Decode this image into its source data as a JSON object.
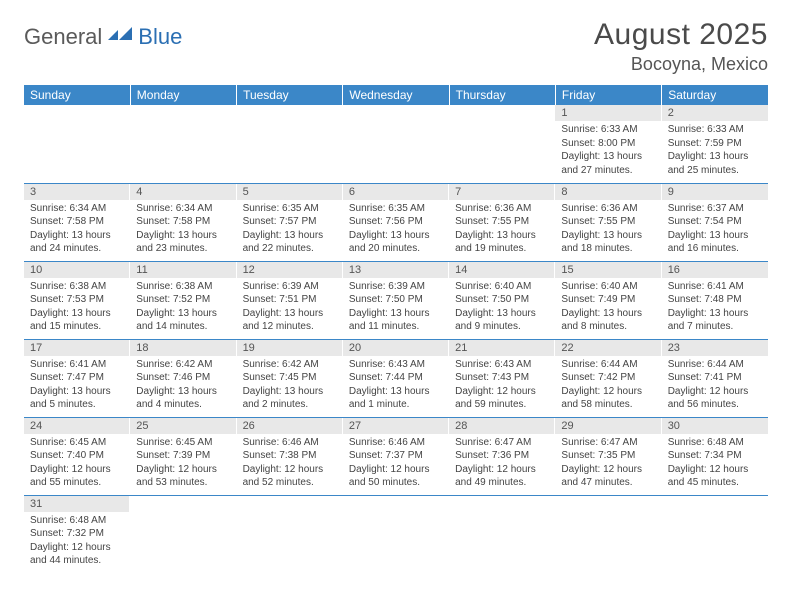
{
  "colors": {
    "header_bg": "#3b87c8",
    "header_text": "#ffffff",
    "daynum_bg": "#e8e8e8",
    "daynum_text": "#555555",
    "border": "#3b87c8",
    "body_text": "#444444",
    "logo_gray": "#5a5a5a",
    "logo_blue": "#2b6fb3"
  },
  "logo": {
    "part1": "General",
    "part2": "Blue"
  },
  "title": "August 2025",
  "location": "Bocoyna, Mexico",
  "weekdays": [
    "Sunday",
    "Monday",
    "Tuesday",
    "Wednesday",
    "Thursday",
    "Friday",
    "Saturday"
  ],
  "weeks": [
    [
      null,
      null,
      null,
      null,
      null,
      {
        "n": "1",
        "sunrise": "Sunrise: 6:33 AM",
        "sunset": "Sunset: 8:00 PM",
        "d1": "Daylight: 13 hours",
        "d2": "and 27 minutes."
      },
      {
        "n": "2",
        "sunrise": "Sunrise: 6:33 AM",
        "sunset": "Sunset: 7:59 PM",
        "d1": "Daylight: 13 hours",
        "d2": "and 25 minutes."
      }
    ],
    [
      {
        "n": "3",
        "sunrise": "Sunrise: 6:34 AM",
        "sunset": "Sunset: 7:58 PM",
        "d1": "Daylight: 13 hours",
        "d2": "and 24 minutes."
      },
      {
        "n": "4",
        "sunrise": "Sunrise: 6:34 AM",
        "sunset": "Sunset: 7:58 PM",
        "d1": "Daylight: 13 hours",
        "d2": "and 23 minutes."
      },
      {
        "n": "5",
        "sunrise": "Sunrise: 6:35 AM",
        "sunset": "Sunset: 7:57 PM",
        "d1": "Daylight: 13 hours",
        "d2": "and 22 minutes."
      },
      {
        "n": "6",
        "sunrise": "Sunrise: 6:35 AM",
        "sunset": "Sunset: 7:56 PM",
        "d1": "Daylight: 13 hours",
        "d2": "and 20 minutes."
      },
      {
        "n": "7",
        "sunrise": "Sunrise: 6:36 AM",
        "sunset": "Sunset: 7:55 PM",
        "d1": "Daylight: 13 hours",
        "d2": "and 19 minutes."
      },
      {
        "n": "8",
        "sunrise": "Sunrise: 6:36 AM",
        "sunset": "Sunset: 7:55 PM",
        "d1": "Daylight: 13 hours",
        "d2": "and 18 minutes."
      },
      {
        "n": "9",
        "sunrise": "Sunrise: 6:37 AM",
        "sunset": "Sunset: 7:54 PM",
        "d1": "Daylight: 13 hours",
        "d2": "and 16 minutes."
      }
    ],
    [
      {
        "n": "10",
        "sunrise": "Sunrise: 6:38 AM",
        "sunset": "Sunset: 7:53 PM",
        "d1": "Daylight: 13 hours",
        "d2": "and 15 minutes."
      },
      {
        "n": "11",
        "sunrise": "Sunrise: 6:38 AM",
        "sunset": "Sunset: 7:52 PM",
        "d1": "Daylight: 13 hours",
        "d2": "and 14 minutes."
      },
      {
        "n": "12",
        "sunrise": "Sunrise: 6:39 AM",
        "sunset": "Sunset: 7:51 PM",
        "d1": "Daylight: 13 hours",
        "d2": "and 12 minutes."
      },
      {
        "n": "13",
        "sunrise": "Sunrise: 6:39 AM",
        "sunset": "Sunset: 7:50 PM",
        "d1": "Daylight: 13 hours",
        "d2": "and 11 minutes."
      },
      {
        "n": "14",
        "sunrise": "Sunrise: 6:40 AM",
        "sunset": "Sunset: 7:50 PM",
        "d1": "Daylight: 13 hours",
        "d2": "and 9 minutes."
      },
      {
        "n": "15",
        "sunrise": "Sunrise: 6:40 AM",
        "sunset": "Sunset: 7:49 PM",
        "d1": "Daylight: 13 hours",
        "d2": "and 8 minutes."
      },
      {
        "n": "16",
        "sunrise": "Sunrise: 6:41 AM",
        "sunset": "Sunset: 7:48 PM",
        "d1": "Daylight: 13 hours",
        "d2": "and 7 minutes."
      }
    ],
    [
      {
        "n": "17",
        "sunrise": "Sunrise: 6:41 AM",
        "sunset": "Sunset: 7:47 PM",
        "d1": "Daylight: 13 hours",
        "d2": "and 5 minutes."
      },
      {
        "n": "18",
        "sunrise": "Sunrise: 6:42 AM",
        "sunset": "Sunset: 7:46 PM",
        "d1": "Daylight: 13 hours",
        "d2": "and 4 minutes."
      },
      {
        "n": "19",
        "sunrise": "Sunrise: 6:42 AM",
        "sunset": "Sunset: 7:45 PM",
        "d1": "Daylight: 13 hours",
        "d2": "and 2 minutes."
      },
      {
        "n": "20",
        "sunrise": "Sunrise: 6:43 AM",
        "sunset": "Sunset: 7:44 PM",
        "d1": "Daylight: 13 hours",
        "d2": "and 1 minute."
      },
      {
        "n": "21",
        "sunrise": "Sunrise: 6:43 AM",
        "sunset": "Sunset: 7:43 PM",
        "d1": "Daylight: 12 hours",
        "d2": "and 59 minutes."
      },
      {
        "n": "22",
        "sunrise": "Sunrise: 6:44 AM",
        "sunset": "Sunset: 7:42 PM",
        "d1": "Daylight: 12 hours",
        "d2": "and 58 minutes."
      },
      {
        "n": "23",
        "sunrise": "Sunrise: 6:44 AM",
        "sunset": "Sunset: 7:41 PM",
        "d1": "Daylight: 12 hours",
        "d2": "and 56 minutes."
      }
    ],
    [
      {
        "n": "24",
        "sunrise": "Sunrise: 6:45 AM",
        "sunset": "Sunset: 7:40 PM",
        "d1": "Daylight: 12 hours",
        "d2": "and 55 minutes."
      },
      {
        "n": "25",
        "sunrise": "Sunrise: 6:45 AM",
        "sunset": "Sunset: 7:39 PM",
        "d1": "Daylight: 12 hours",
        "d2": "and 53 minutes."
      },
      {
        "n": "26",
        "sunrise": "Sunrise: 6:46 AM",
        "sunset": "Sunset: 7:38 PM",
        "d1": "Daylight: 12 hours",
        "d2": "and 52 minutes."
      },
      {
        "n": "27",
        "sunrise": "Sunrise: 6:46 AM",
        "sunset": "Sunset: 7:37 PM",
        "d1": "Daylight: 12 hours",
        "d2": "and 50 minutes."
      },
      {
        "n": "28",
        "sunrise": "Sunrise: 6:47 AM",
        "sunset": "Sunset: 7:36 PM",
        "d1": "Daylight: 12 hours",
        "d2": "and 49 minutes."
      },
      {
        "n": "29",
        "sunrise": "Sunrise: 6:47 AM",
        "sunset": "Sunset: 7:35 PM",
        "d1": "Daylight: 12 hours",
        "d2": "and 47 minutes."
      },
      {
        "n": "30",
        "sunrise": "Sunrise: 6:48 AM",
        "sunset": "Sunset: 7:34 PM",
        "d1": "Daylight: 12 hours",
        "d2": "and 45 minutes."
      }
    ],
    [
      {
        "n": "31",
        "sunrise": "Sunrise: 6:48 AM",
        "sunset": "Sunset: 7:32 PM",
        "d1": "Daylight: 12 hours",
        "d2": "and 44 minutes."
      },
      null,
      null,
      null,
      null,
      null,
      null
    ]
  ]
}
